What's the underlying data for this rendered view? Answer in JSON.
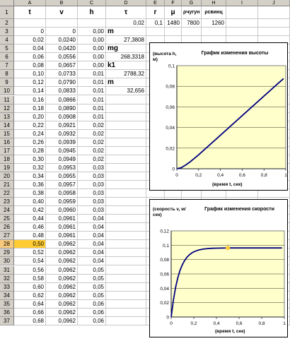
{
  "columns": [
    "A",
    "B",
    "C",
    "D",
    "E",
    "F",
    "G",
    "H",
    "I",
    "J"
  ],
  "row_numbers": [
    "1",
    "2",
    "3",
    "4",
    "5",
    "6",
    "7",
    "8",
    "9",
    "10",
    "11",
    "12",
    "13",
    "14",
    "15",
    "16",
    "17",
    "18",
    "19",
    "20",
    "21",
    "22",
    "23",
    "24",
    "25",
    "26",
    "27",
    "28",
    "29",
    "30",
    "31",
    "32",
    "33",
    "34",
    "35",
    "36",
    "37"
  ],
  "selected_row": "28",
  "headers": {
    "t": "t",
    "v": "v",
    "h": "h",
    "tau": "τ",
    "r": "r",
    "mu": "μ",
    "rho_iron": "ρчугун",
    "rho_lead": "ρсвинц"
  },
  "params": {
    "tau": "0,02",
    "r": "0,1",
    "mu": "1480",
    "rho_iron": "7800",
    "rho_lead": "1260"
  },
  "row3": {
    "t": "0",
    "v": "0",
    "h": "0,00"
  },
  "d_labels": {
    "m_bar": "m",
    "m_bar_value": "27,3808",
    "mg_bar": "mg",
    "mg_bar_value": "268,3318",
    "k1": "k1",
    "k1_value": "2788,32",
    "m": "m",
    "m_value": "32,656"
  },
  "table": [
    {
      "row": "4",
      "t": "0,02",
      "v": "0,0240",
      "h": "0,00"
    },
    {
      "row": "5",
      "t": "0,04",
      "v": "0,0420",
      "h": "0,00"
    },
    {
      "row": "6",
      "t": "0,06",
      "v": "0,0556",
      "h": "0,00"
    },
    {
      "row": "7",
      "t": "0,08",
      "v": "0,0657",
      "h": "0,00"
    },
    {
      "row": "8",
      "t": "0,10",
      "v": "0,0733",
      "h": "0,01"
    },
    {
      "row": "9",
      "t": "0,12",
      "v": "0,0790",
      "h": "0,01"
    },
    {
      "row": "10",
      "t": "0,14",
      "v": "0,0833",
      "h": "0,01"
    },
    {
      "row": "11",
      "t": "0,16",
      "v": "0,0866",
      "h": "0,01"
    },
    {
      "row": "12",
      "t": "0,18",
      "v": "0,0890",
      "h": "0,01"
    },
    {
      "row": "13",
      "t": "0,20",
      "v": "0,0908",
      "h": "0,01"
    },
    {
      "row": "14",
      "t": "0,22",
      "v": "0,0921",
      "h": "0,02"
    },
    {
      "row": "15",
      "t": "0,24",
      "v": "0,0932",
      "h": "0,02"
    },
    {
      "row": "16",
      "t": "0,26",
      "v": "0,0939",
      "h": "0,02"
    },
    {
      "row": "17",
      "t": "0,28",
      "v": "0,0945",
      "h": "0,02"
    },
    {
      "row": "18",
      "t": "0,30",
      "v": "0,0949",
      "h": "0,02"
    },
    {
      "row": "19",
      "t": "0,32",
      "v": "0,0953",
      "h": "0,03"
    },
    {
      "row": "20",
      "t": "0,34",
      "v": "0,0955",
      "h": "0,03"
    },
    {
      "row": "21",
      "t": "0,36",
      "v": "0,0957",
      "h": "0,03"
    },
    {
      "row": "22",
      "t": "0,38",
      "v": "0,0958",
      "h": "0,03"
    },
    {
      "row": "23",
      "t": "0,40",
      "v": "0,0959",
      "h": "0,03"
    },
    {
      "row": "24",
      "t": "0,42",
      "v": "0,0960",
      "h": "0,03"
    },
    {
      "row": "25",
      "t": "0,44",
      "v": "0,0961",
      "h": "0,04"
    },
    {
      "row": "26",
      "t": "0,46",
      "v": "0,0961",
      "h": "0,04"
    },
    {
      "row": "27",
      "t": "0,48",
      "v": "0,0961",
      "h": "0,04"
    },
    {
      "row": "28",
      "t": "0,50",
      "v": "0,0962",
      "h": "0,04"
    },
    {
      "row": "29",
      "t": "0,52",
      "v": "0,0962",
      "h": "0,04"
    },
    {
      "row": "30",
      "t": "0,54",
      "v": "0,0962",
      "h": "0,04"
    },
    {
      "row": "31",
      "t": "0,56",
      "v": "0,0962",
      "h": "0,05"
    },
    {
      "row": "32",
      "t": "0,58",
      "v": "0,0962",
      "h": "0,05"
    },
    {
      "row": "33",
      "t": "0,60",
      "v": "0,0962",
      "h": "0,05"
    },
    {
      "row": "34",
      "t": "0,62",
      "v": "0,0962",
      "h": "0,05"
    },
    {
      "row": "35",
      "t": "0,64",
      "v": "0,0962",
      "h": "0,06"
    },
    {
      "row": "36",
      "t": "0,66",
      "v": "0,0962",
      "h": "0,06"
    },
    {
      "row": "37",
      "t": "0,68",
      "v": "0,0962",
      "h": "0,06"
    }
  ],
  "chart_data": [
    {
      "type": "line",
      "title": "График изменения высоты",
      "ylabel": "(высота h, м)",
      "xlabel": "(время t, сек)",
      "xlim": [
        0,
        1
      ],
      "ylim": [
        0,
        0.1
      ],
      "xticks": [
        "0",
        "0,2",
        "0,4",
        "0,6",
        "0,8",
        "1"
      ],
      "yticks": [
        "0",
        "0,02",
        "0,04",
        "0,06",
        "0,08",
        "0,1"
      ],
      "plot_bg": "#ffffcc",
      "line_color": "#000080",
      "x": [
        0,
        0.04,
        0.08,
        0.12,
        0.16,
        0.2,
        0.3,
        0.4,
        0.5,
        0.6,
        0.7,
        0.8,
        0.9,
        0.98
      ],
      "y": [
        0,
        0.001,
        0.0035,
        0.0065,
        0.01,
        0.0135,
        0.023,
        0.0325,
        0.042,
        0.0515,
        0.061,
        0.0705,
        0.08,
        0.0875
      ]
    },
    {
      "type": "line",
      "title": "График изменения скорости",
      "ylabel": "(скорость v, м/сек)",
      "xlabel": "(время t, сек)",
      "xlim": [
        0,
        1
      ],
      "ylim": [
        0,
        0.12
      ],
      "xticks": [
        "0",
        "0,2",
        "0,4",
        "0,6",
        "0,8",
        "1"
      ],
      "yticks": [
        "0",
        "0,02",
        "0,04",
        "0,06",
        "0,08",
        "0,1",
        "0,12"
      ],
      "plot_bg": "#ffffcc",
      "line_color": "#000080",
      "marker": {
        "x": 0.5,
        "y": 0.0962,
        "color": "#ffcc33"
      },
      "x": [
        0,
        0.02,
        0.04,
        0.06,
        0.08,
        0.1,
        0.12,
        0.14,
        0.16,
        0.18,
        0.2,
        0.24,
        0.28,
        0.32,
        0.36,
        0.4,
        0.5,
        0.6,
        0.7,
        0.8,
        0.9,
        0.98
      ],
      "y": [
        0,
        0.024,
        0.042,
        0.0556,
        0.0657,
        0.0733,
        0.079,
        0.0833,
        0.0866,
        0.089,
        0.0908,
        0.0932,
        0.0945,
        0.0953,
        0.0957,
        0.0959,
        0.0962,
        0.0962,
        0.0962,
        0.0962,
        0.0962,
        0.0962
      ]
    }
  ]
}
